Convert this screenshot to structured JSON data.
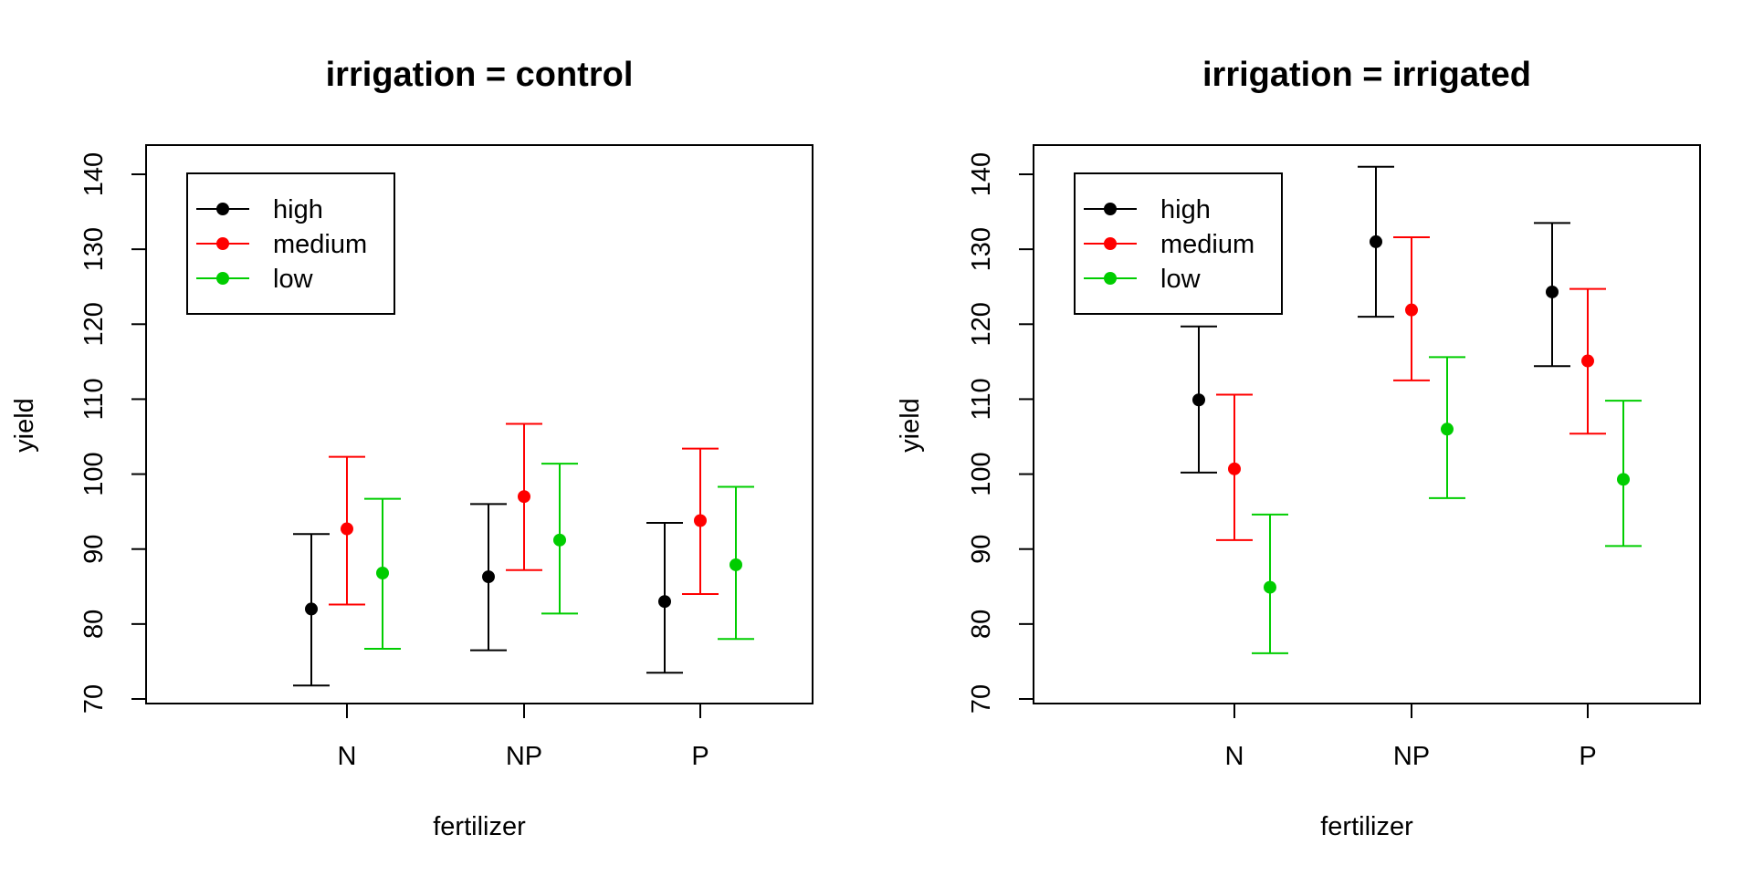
{
  "chart_data": [
    {
      "type": "scatter",
      "title": "irrigation = control",
      "xlabel": "fertilizer",
      "ylabel": "yield",
      "categories": [
        "N",
        "NP",
        "P"
      ],
      "yticks": [
        70,
        80,
        90,
        100,
        110,
        120,
        130,
        140
      ],
      "ylim": [
        66,
        141
      ],
      "error_bars": true,
      "legend_position": "top-left",
      "series": [
        {
          "name": "high",
          "color": "#000000",
          "values": [
            82.0,
            86.3,
            83.0
          ],
          "lower": [
            71.8,
            76.5,
            73.5
          ],
          "upper": [
            92.0,
            96.0,
            93.5
          ]
        },
        {
          "name": "medium",
          "color": "#ff0000",
          "values": [
            92.7,
            97.0,
            93.8
          ],
          "lower": [
            82.6,
            87.2,
            84.0
          ],
          "upper": [
            102.3,
            106.7,
            103.4
          ]
        },
        {
          "name": "low",
          "color": "#00cd00",
          "values": [
            86.8,
            91.2,
            87.9
          ],
          "lower": [
            76.7,
            81.4,
            78.0
          ],
          "upper": [
            96.7,
            101.4,
            98.3
          ]
        }
      ]
    },
    {
      "type": "scatter",
      "title": "irrigation = irrigated",
      "xlabel": "fertilizer",
      "ylabel": "yield",
      "categories": [
        "N",
        "NP",
        "P"
      ],
      "yticks": [
        70,
        80,
        90,
        100,
        110,
        120,
        130,
        140
      ],
      "ylim": [
        66,
        141
      ],
      "error_bars": true,
      "legend_position": "top-left",
      "series": [
        {
          "name": "high",
          "color": "#000000",
          "values": [
            109.9,
            131.0,
            124.3
          ],
          "lower": [
            100.2,
            121.0,
            114.4
          ],
          "upper": [
            119.7,
            141.0,
            133.5
          ]
        },
        {
          "name": "medium",
          "color": "#ff0000",
          "values": [
            100.7,
            121.9,
            115.1
          ],
          "lower": [
            91.2,
            112.5,
            105.4
          ],
          "upper": [
            110.6,
            131.6,
            124.7
          ]
        },
        {
          "name": "low",
          "color": "#00cd00",
          "values": [
            84.9,
            106.0,
            99.3
          ],
          "lower": [
            76.1,
            96.8,
            90.4
          ],
          "upper": [
            94.6,
            115.6,
            109.8
          ]
        }
      ]
    }
  ]
}
